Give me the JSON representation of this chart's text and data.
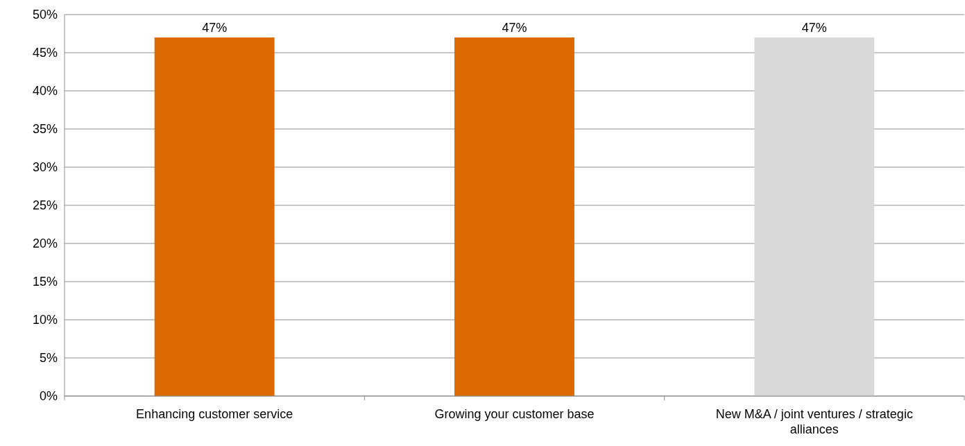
{
  "chart_data": {
    "type": "bar",
    "categories": [
      "Enhancing customer service",
      "Growing your customer base",
      "New M&A / joint ventures / strategic alliances"
    ],
    "values": [
      47,
      47,
      47
    ],
    "colors": [
      "#dd6a00",
      "#dd6a00",
      "#d9d9d9"
    ],
    "value_labels": [
      "47%",
      "47%",
      "47%"
    ],
    "ylim": [
      0,
      50
    ],
    "yticks": [
      {
        "value": 0,
        "label": "0%"
      },
      {
        "value": 5,
        "label": "5%"
      },
      {
        "value": 10,
        "label": "10%"
      },
      {
        "value": 15,
        "label": "15%"
      },
      {
        "value": 20,
        "label": "20%"
      },
      {
        "value": 25,
        "label": "25%"
      },
      {
        "value": 30,
        "label": "30%"
      },
      {
        "value": 35,
        "label": "35%"
      },
      {
        "value": 40,
        "label": "40%"
      },
      {
        "value": 45,
        "label": "45%"
      },
      {
        "value": 50,
        "label": "50%"
      }
    ],
    "grid": "y"
  }
}
